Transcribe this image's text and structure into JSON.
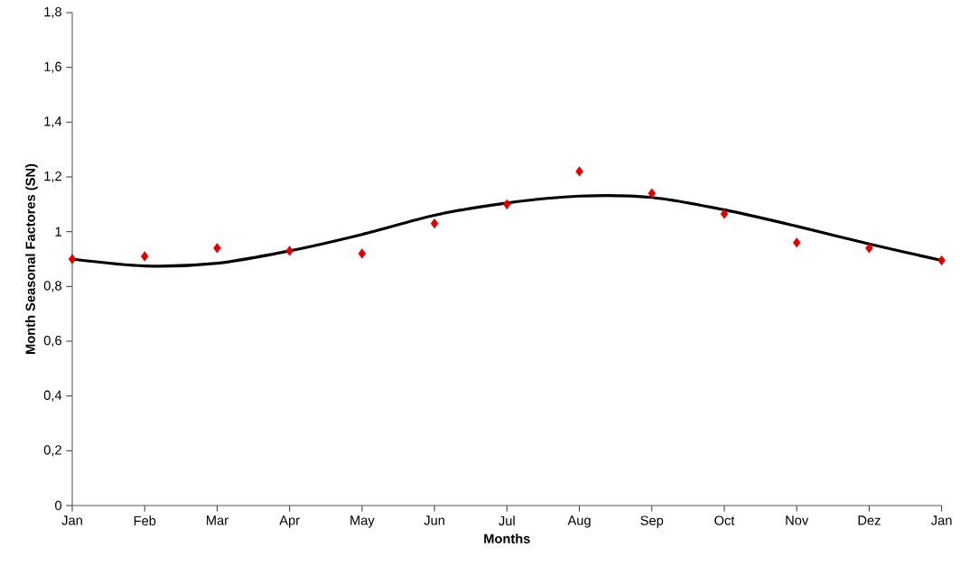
{
  "chart_data": {
    "type": "line",
    "xlabel": "Months",
    "ylabel": "Month Seasonal Factores (SN)",
    "categories": [
      "Jan",
      "Feb",
      "Mar",
      "Apr",
      "May",
      "Jun",
      "Jul",
      "Aug",
      "Sep",
      "Oct",
      "Nov",
      "Dez",
      "Jan"
    ],
    "series": [
      {
        "type": "line",
        "color": "#000000",
        "line_style": "solid",
        "marker": "none",
        "values": [
          0.9,
          0.875,
          0.885,
          0.93,
          0.99,
          1.06,
          1.105,
          1.13,
          1.125,
          1.08,
          1.02,
          0.955,
          0.895
        ]
      },
      {
        "type": "scatter",
        "color": "#e00000",
        "marker": "diamond",
        "values": [
          0.9,
          0.91,
          0.94,
          0.93,
          0.92,
          1.03,
          1.1,
          1.22,
          1.14,
          1.065,
          0.96,
          0.94,
          0.895
        ]
      }
    ],
    "ylim": [
      0,
      1.8
    ],
    "yticks": [
      0,
      {
        "value": 0.2,
        "label": "0,2"
      },
      {
        "value": 0.4,
        "label": "0,4"
      },
      {
        "value": 0.6,
        "label": "0,6"
      },
      {
        "value": 0.8,
        "label": "0,8"
      },
      1,
      {
        "value": 1.2,
        "label": "1,2"
      },
      {
        "value": 1.4,
        "label": "1,4"
      },
      {
        "value": 1.6,
        "label": "1,6"
      },
      {
        "value": 1.8,
        "label": "1,8"
      }
    ],
    "grid": false
  }
}
